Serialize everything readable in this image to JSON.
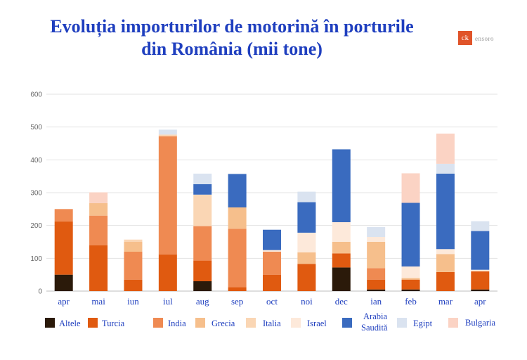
{
  "title_line1": "Evoluția importurilor de motorină în porturile",
  "title_line2": "din România (mii tone)",
  "logo": {
    "mark": "ck",
    "text": "ensoro"
  },
  "chart_data": {
    "type": "bar",
    "stacked": true,
    "categories": [
      "apr",
      "mai",
      "iun",
      "iul",
      "aug",
      "sep",
      "oct",
      "noi",
      "dec",
      "ian",
      "feb",
      "mar",
      "apr"
    ],
    "ylim": [
      0,
      600
    ],
    "yticks": [
      0,
      100,
      200,
      300,
      400,
      500,
      600
    ],
    "grid": true,
    "legend_position": "bottom",
    "series": [
      {
        "name": "Altele",
        "color": "#2b1a0a",
        "values": [
          50,
          0,
          0,
          0,
          30,
          0,
          0,
          0,
          72,
          5,
          5,
          0,
          5
        ]
      },
      {
        "name": "Turcia",
        "color": "#e05a10",
        "values": [
          162,
          140,
          35,
          112,
          63,
          12,
          50,
          83,
          43,
          30,
          30,
          58,
          55
        ]
      },
      {
        "name": "India",
        "color": "#ef8a52",
        "values": [
          38,
          90,
          85,
          360,
          105,
          178,
          70,
          0,
          0,
          35,
          0,
          0,
          0
        ]
      },
      {
        "name": "Grecia",
        "color": "#f6bf8c",
        "values": [
          0,
          38,
          30,
          0,
          0,
          65,
          0,
          35,
          35,
          80,
          5,
          55,
          0
        ]
      },
      {
        "name": "Italia",
        "color": "#fad6b4",
        "values": [
          0,
          0,
          7,
          5,
          96,
          0,
          0,
          0,
          0,
          0,
          0,
          0,
          0
        ]
      },
      {
        "name": "Israel",
        "color": "#fde9da",
        "values": [
          0,
          0,
          0,
          0,
          0,
          0,
          5,
          60,
          60,
          15,
          35,
          15,
          5
        ]
      },
      {
        "name": "Arabia Saudită",
        "color": "#3a6bbf",
        "values": [
          0,
          0,
          0,
          0,
          32,
          102,
          62,
          93,
          222,
          0,
          194,
          230,
          118
        ]
      },
      {
        "name": "Egipt",
        "color": "#dae3f0",
        "values": [
          0,
          0,
          0,
          15,
          32,
          0,
          0,
          32,
          0,
          30,
          0,
          30,
          30
        ]
      },
      {
        "name": "Bulgaria",
        "color": "#fbd3c4",
        "values": [
          0,
          33,
          0,
          0,
          0,
          0,
          0,
          0,
          0,
          0,
          90,
          92,
          0
        ]
      }
    ],
    "legend_labels": {
      "altele": "Altele",
      "turcia": "Turcia",
      "india": "India",
      "grecia": "Grecia",
      "italia": "Italia",
      "israel": "Israel",
      "arabia1": "Arabia",
      "arabia2": "Saudită",
      "egipt": "Egipt",
      "bulgaria": "Bulgaria"
    }
  }
}
